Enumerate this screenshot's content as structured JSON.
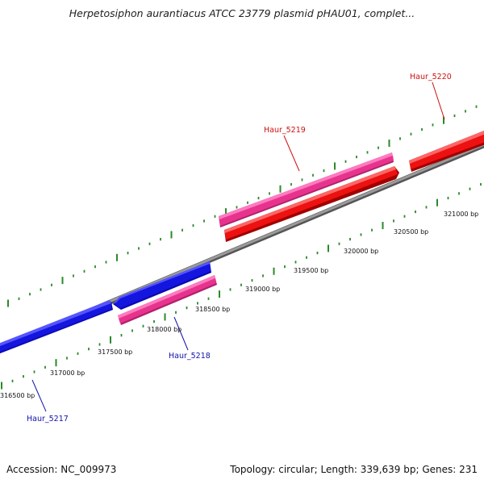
{
  "map": {
    "title": "Herpetosiphon aurantiacus ATCC 23779 plasmid pHAU01, complet...",
    "footer": {
      "accession": "Accession: NC_009973",
      "summary": "Topology: circular; Length: 339,639 bp; Genes: 231"
    },
    "colors": {
      "backbone": "#888888",
      "tick": "#2a8a2a",
      "forward_cds": "#ee1111",
      "forward_orf": "#e8338e",
      "reverse_cds": "#1515e0",
      "label_forward": "#cc1111",
      "label_reverse": "#1111aa"
    },
    "scale_labels": [
      "316500 bp",
      "317000 bp",
      "317500 bp",
      "318000 bp",
      "318500 bp",
      "319000 bp",
      "319500 bp",
      "320000 bp",
      "320500 bp",
      "321000 bp"
    ],
    "genes": [
      {
        "name": "Haur_5217",
        "strand": "reverse"
      },
      {
        "name": "Haur_5218",
        "strand": "reverse"
      },
      {
        "name": "Haur_5219",
        "strand": "forward"
      },
      {
        "name": "Haur_5220",
        "strand": "forward"
      }
    ]
  }
}
